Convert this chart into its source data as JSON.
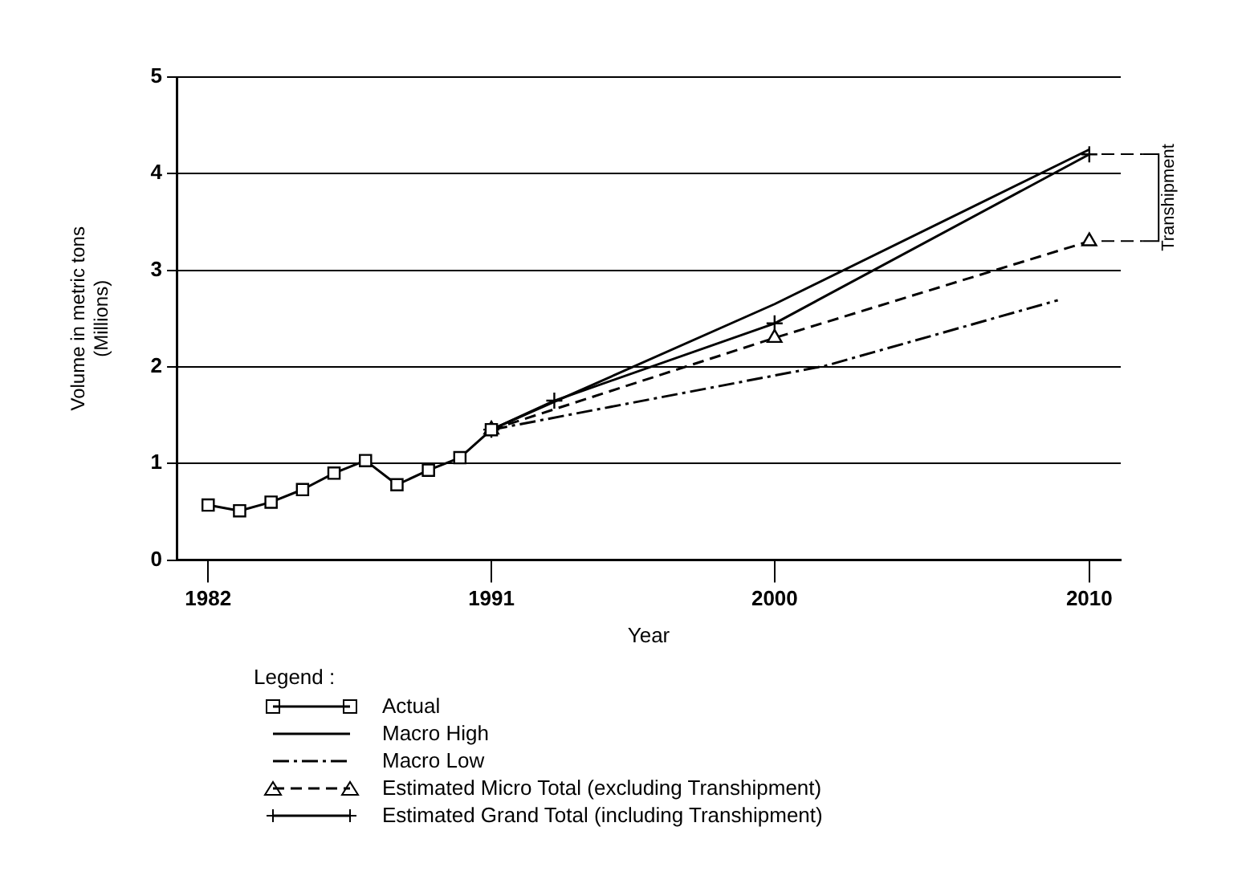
{
  "chart_data": {
    "type": "line",
    "xlabel": "Year",
    "ylabel": "Volume in metric tons\n(Millions)",
    "legend_title": "Legend :",
    "xlim": [
      1981,
      2011
    ],
    "xticks": [
      1982,
      1991,
      2000,
      2010
    ],
    "ylim": [
      0,
      5
    ],
    "yticks": [
      0,
      1,
      2,
      3,
      4,
      5
    ],
    "grid": "y",
    "legend": "bottom",
    "series": [
      {
        "name": "Actual",
        "color": "#000000",
        "marker": "square",
        "line_style": "solid",
        "x": [
          1982,
          1983,
          1984,
          1985,
          1986,
          1987,
          1988,
          1989,
          1990,
          1991
        ],
        "values": [
          0.57,
          0.51,
          0.6,
          0.73,
          0.9,
          1.03,
          0.78,
          0.93,
          1.06,
          1.35
        ]
      },
      {
        "name": "Macro High",
        "color": "#000000",
        "marker": "none",
        "line_style": "solid",
        "x": [
          1991,
          2000,
          2010
        ],
        "values": [
          1.35,
          2.65,
          4.25
        ]
      },
      {
        "name": "Macro Low",
        "color": "#000000",
        "marker": "none",
        "line_style": "dashdot",
        "x": [
          1991,
          2001.6,
          2009
        ],
        "values": [
          1.35,
          2.01,
          2.69
        ]
      },
      {
        "name": "Estimated Micro Total (excluding Transhipment)",
        "color": "#000000",
        "marker": "triangle",
        "line_style": "dashed",
        "x": [
          1991,
          2000,
          2010
        ],
        "values": [
          1.35,
          2.3,
          3.3
        ]
      },
      {
        "name": "Estimated Grand Total (including Transhipment)",
        "color": "#000000",
        "marker": "cross",
        "line_style": "solid",
        "x": [
          1991,
          1993,
          2000,
          2010
        ],
        "values": [
          1.35,
          1.65,
          2.45,
          4.2
        ]
      }
    ],
    "annotations": [
      {
        "text": "Transhipment",
        "x": 2010,
        "y": 4.2
      }
    ]
  }
}
